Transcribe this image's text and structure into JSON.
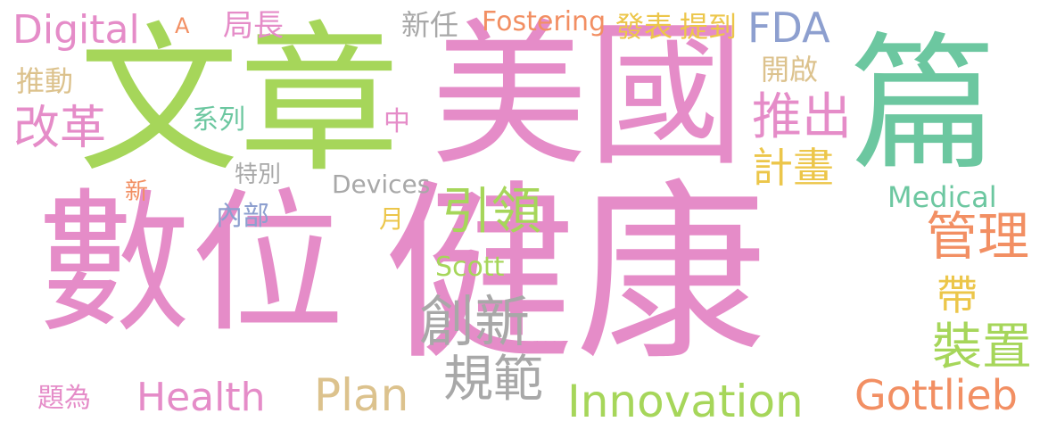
{
  "colors": {
    "pink": "#e58cc8",
    "green": "#a6d65a",
    "teal": "#6cc7a0",
    "blue": "#8d9fcf",
    "orange": "#f28f63",
    "yellow": "#ecc64a",
    "gray": "#a8a8a8",
    "tan": "#dcc28d"
  },
  "words": {
    "shuwei": "數位",
    "jiankang": "健康",
    "meiguo": "美國",
    "wenzhang": "文章",
    "pian": "篇",
    "fda": "FDA",
    "digital": "Digital",
    "a": "A",
    "juzhang": "局長",
    "xinren": "新任",
    "fostering": "Fostering",
    "fabiao": "發表",
    "tidao": "提到",
    "tuidong": "推動",
    "kaiqi": "開啟",
    "gaige": "改革",
    "xilie": "系列",
    "zhong": "中",
    "tuichu": "推出",
    "jihua": "計畫",
    "xin": "新",
    "tebie": "特別",
    "devices": "Devices",
    "neibu": "內部",
    "yue": "月",
    "yinling": "引領",
    "medical": "Medical",
    "guanli": "管理",
    "scott": "Scott",
    "chuangxin": "創新",
    "dai": "帶",
    "zhuangzhi": "裝置",
    "guifan": "規範",
    "plan": "Plan",
    "health": "Health",
    "tiwei": "題為",
    "innovation": "Innovation",
    "gottlieb": "Gottlieb"
  }
}
